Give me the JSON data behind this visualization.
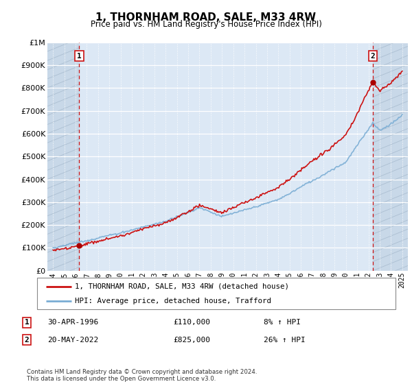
{
  "title": "1, THORNHAM ROAD, SALE, M33 4RW",
  "subtitle": "Price paid vs. HM Land Registry's House Price Index (HPI)",
  "hpi_color": "#7aadd4",
  "sale_color": "#cc1111",
  "marker_color": "#aa0000",
  "bg_main": "#dce8f5",
  "bg_hatch": "#c8d8e8",
  "grid_color": "#ffffff",
  "ylim": [
    0,
    1000000
  ],
  "yticks": [
    0,
    100000,
    200000,
    300000,
    400000,
    500000,
    600000,
    700000,
    800000,
    900000,
    1000000
  ],
  "ylabel_map": {
    "0": "£0",
    "100000": "£100K",
    "200000": "£200K",
    "300000": "£300K",
    "400000": "£400K",
    "500000": "£500K",
    "600000": "£600K",
    "700000": "£700K",
    "800000": "£800K",
    "900000": "£900K",
    "1000000": "£1M"
  },
  "xlim_start": 1993.5,
  "xlim_end": 2025.5,
  "xticks": [
    1994,
    1995,
    1996,
    1997,
    1998,
    1999,
    2000,
    2001,
    2002,
    2003,
    2004,
    2005,
    2006,
    2007,
    2008,
    2009,
    2010,
    2011,
    2012,
    2013,
    2014,
    2015,
    2016,
    2017,
    2018,
    2019,
    2020,
    2021,
    2022,
    2023,
    2024,
    2025
  ],
  "transaction1": {
    "date_label": "30-APR-1996",
    "price": 110000,
    "year": 1996.33,
    "label": "1",
    "hpi_note": "8% ↑ HPI"
  },
  "transaction2": {
    "date_label": "20-MAY-2022",
    "price": 825000,
    "year": 2022.38,
    "label": "2",
    "hpi_note": "26% ↑ HPI"
  },
  "legend_line1": "1, THORNHAM ROAD, SALE, M33 4RW (detached house)",
  "legend_line2": "HPI: Average price, detached house, Trafford",
  "footer": "Contains HM Land Registry data © Crown copyright and database right 2024.\nThis data is licensed under the Open Government Licence v3.0.",
  "sale1_year": 1996.33,
  "sale1_price": 110000,
  "sale2_year": 2022.38,
  "sale2_price": 825000
}
